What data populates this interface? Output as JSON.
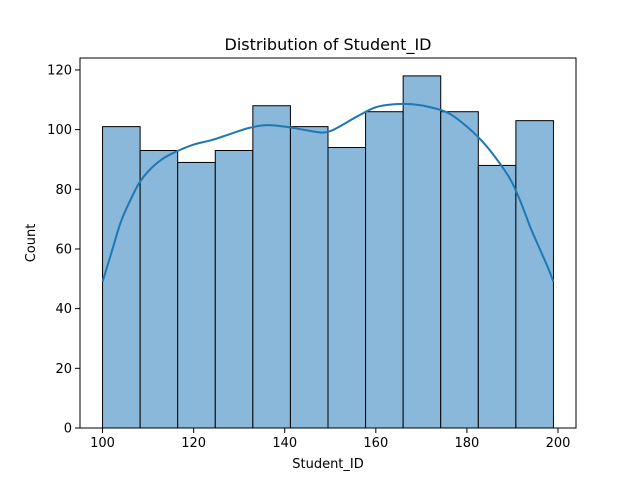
{
  "colors": {
    "bar_fill": "#8ab8da",
    "bar_edge": "#000000",
    "kde_line": "#1f77b4",
    "axis": "#000000"
  },
  "chart_data": {
    "type": "bar",
    "title": "Distribution of Student_ID",
    "xlabel": "Student_ID",
    "ylabel": "Count",
    "xlim": [
      95.05,
      203.95
    ],
    "ylim": [
      0,
      124
    ],
    "xticks": [
      100,
      120,
      140,
      160,
      180,
      200
    ],
    "yticks": [
      0,
      20,
      40,
      60,
      80,
      100,
      120
    ],
    "bin_edges": [
      100,
      108.25,
      116.5,
      124.75,
      133,
      141.25,
      149.5,
      157.75,
      166,
      174.25,
      182.5,
      190.75,
      199
    ],
    "values": [
      101,
      93,
      89,
      93,
      108,
      101,
      94,
      106,
      118,
      106,
      88,
      103
    ],
    "kde": {
      "x": [
        100,
        102,
        104,
        106,
        108,
        110,
        113,
        116,
        120,
        124,
        128,
        132,
        136,
        140,
        144,
        148,
        150,
        152,
        156,
        160,
        164,
        168,
        172,
        176,
        180,
        184,
        188,
        190,
        192,
        194,
        196,
        198,
        199
      ],
      "y": [
        49,
        59,
        69,
        76,
        82,
        86,
        90,
        92.5,
        95,
        96.5,
        98.5,
        100.5,
        101.5,
        101,
        100,
        99,
        99.5,
        101,
        104.5,
        107.5,
        108.5,
        108.5,
        107.5,
        105.5,
        101,
        95,
        87,
        82,
        75,
        67,
        60,
        53,
        49
      ]
    },
    "grid": false,
    "legend": "none"
  }
}
